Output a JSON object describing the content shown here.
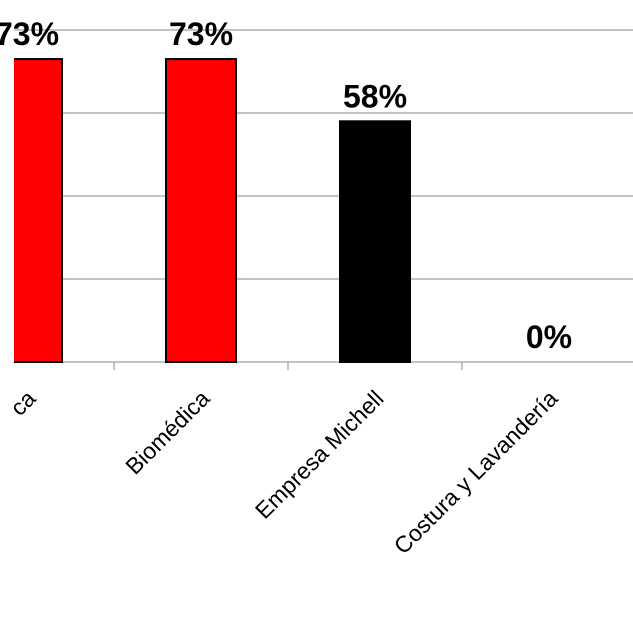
{
  "chart_data": {
    "type": "bar",
    "categories": [
      "ca",
      "Biomédica",
      "Empresa Michell",
      "Costura  y Lavandería"
    ],
    "values": [
      73,
      73,
      58,
      0
    ],
    "value_labels": [
      "73%",
      "73%",
      "58%",
      "0%"
    ],
    "colors": [
      "#ff0000",
      "#ff0000",
      "#000000",
      "#000000"
    ],
    "ylim": [
      0,
      80
    ],
    "yticks": [
      0,
      20,
      40,
      60,
      80
    ],
    "grid": true
  }
}
